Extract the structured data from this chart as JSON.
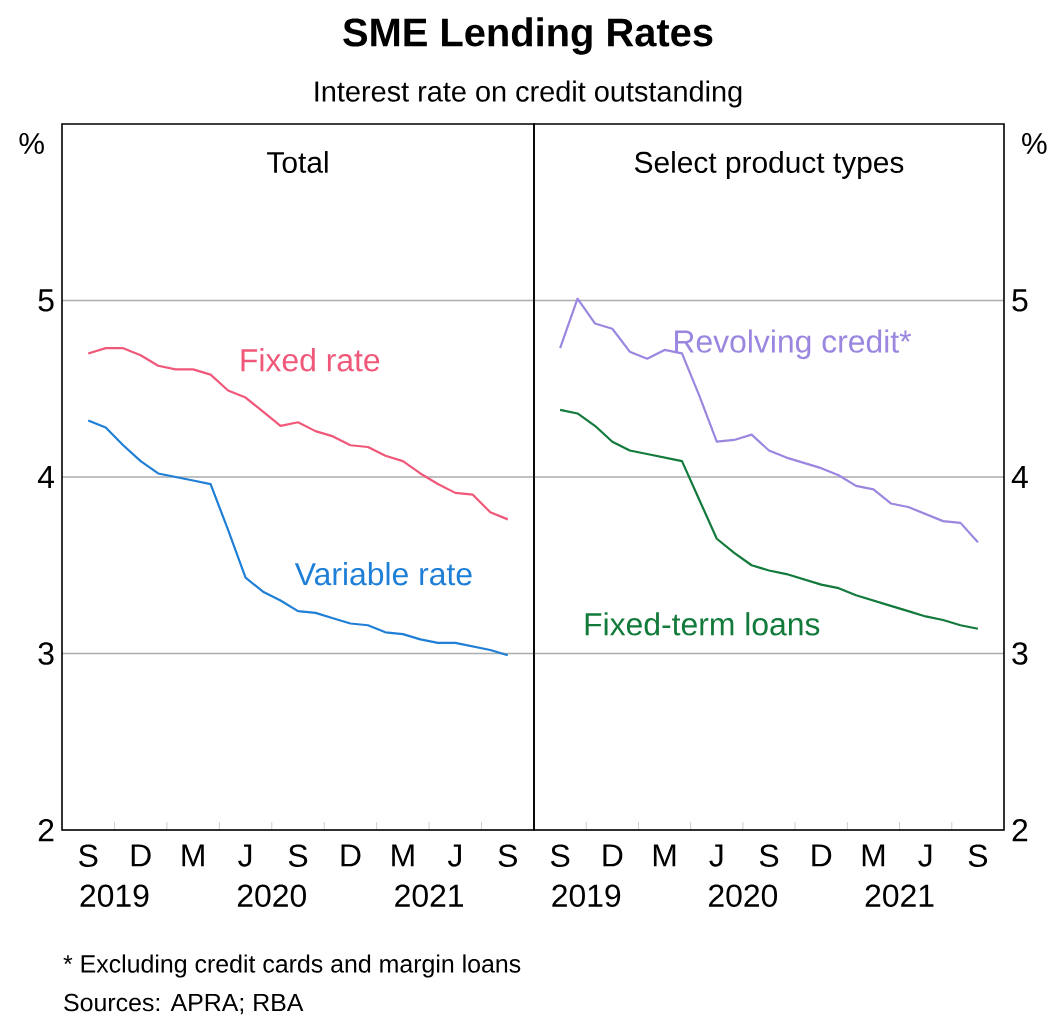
{
  "chart_data": [
    {
      "type": "other",
      "title": "SME Lending Rates",
      "subtitle": "Interest rate on credit outstanding",
      "annotations": [
        "* Excluding credit cards and margin loans",
        "Sources: APRA; RBA"
      ]
    },
    {
      "type": "line",
      "title": "Total",
      "ylabel": "%",
      "grid": "y",
      "ylim": [
        2,
        6
      ],
      "yticks": [
        2,
        3,
        4,
        5
      ],
      "categories": [
        null,
        "S",
        null,
        null,
        "D",
        null,
        null,
        "M",
        null,
        null,
        "J",
        null,
        null,
        "S",
        null,
        null,
        "D",
        null,
        null,
        "M",
        null,
        null,
        "J",
        null,
        null,
        "S",
        null
      ],
      "annotations": [
        "2019",
        "2020",
        "2021"
      ],
      "series": [
        {
          "name": "Fixed rate",
          "color": "#f0587a",
          "values": [
            null,
            4.7,
            4.73,
            4.73,
            4.69,
            4.63,
            4.61,
            4.61,
            4.58,
            4.49,
            4.45,
            4.37,
            4.29,
            4.31,
            4.26,
            4.23,
            4.18,
            4.17,
            4.12,
            4.09,
            4.02,
            3.96,
            3.91,
            3.9,
            3.8,
            3.76,
            null
          ]
        },
        {
          "name": "Variable rate",
          "color": "#1f7fd6",
          "values": [
            null,
            4.32,
            4.28,
            4.18,
            4.09,
            4.02,
            4.0,
            3.98,
            3.96,
            3.7,
            3.43,
            3.35,
            3.3,
            3.24,
            3.23,
            3.2,
            3.17,
            3.16,
            3.12,
            3.11,
            3.08,
            3.06,
            3.06,
            3.04,
            3.02,
            2.99,
            null
          ]
        }
      ]
    },
    {
      "type": "line",
      "title": "Select product types",
      "ylabel": "%",
      "grid": "y",
      "ylim": [
        2,
        6
      ],
      "yticks": [
        2,
        3,
        4,
        5
      ],
      "categories": [
        null,
        "S",
        null,
        null,
        "D",
        null,
        null,
        "M",
        null,
        null,
        "J",
        null,
        null,
        "S",
        null,
        null,
        "D",
        null,
        null,
        "M",
        null,
        null,
        "J",
        null,
        null,
        "S",
        null
      ],
      "annotations": [
        "2019",
        "2020",
        "2021"
      ],
      "series": [
        {
          "name": "Revolving credit*",
          "color": "#9b86e0",
          "values": [
            null,
            4.73,
            5.01,
            4.87,
            4.84,
            4.71,
            4.67,
            4.72,
            4.7,
            4.46,
            4.2,
            4.21,
            4.24,
            4.15,
            4.11,
            4.08,
            4.05,
            4.01,
            3.95,
            3.93,
            3.85,
            3.83,
            3.79,
            3.75,
            3.74,
            3.63,
            null
          ]
        },
        {
          "name": "Fixed-term loans",
          "color": "#127a3a",
          "values": [
            null,
            4.38,
            4.36,
            4.29,
            4.2,
            4.15,
            4.13,
            4.11,
            4.09,
            3.87,
            3.65,
            3.57,
            3.5,
            3.47,
            3.45,
            3.42,
            3.39,
            3.37,
            3.33,
            3.3,
            3.27,
            3.24,
            3.21,
            3.19,
            3.16,
            3.14,
            null
          ]
        }
      ]
    }
  ]
}
